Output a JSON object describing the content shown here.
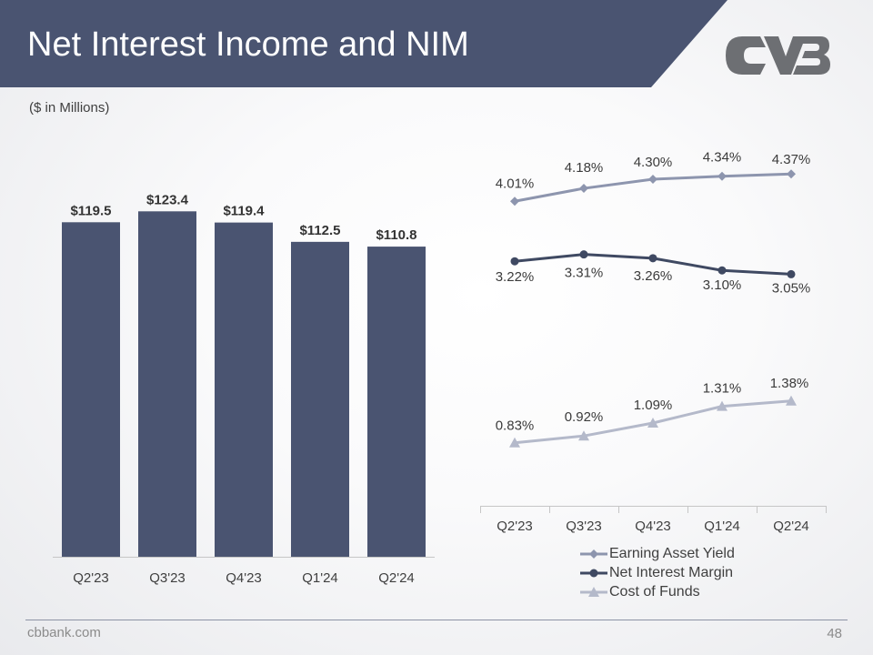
{
  "slide": {
    "title": "Net Interest Income and NIM",
    "units_note": "($ in Millions)",
    "footer_url": "cbbank.com",
    "page_number": "48",
    "logo_icon": "cvb-logo-icon",
    "colors": {
      "header": "#4a5471",
      "bar": "#4a5471",
      "earning_asset_yield": "#8d95ae",
      "net_interest_margin": "#3f4962",
      "cost_of_funds": "#b4b9ca",
      "axis": "#c6c6c6"
    }
  },
  "chart_data": [
    {
      "type": "bar",
      "categories": [
        "Q2'23",
        "Q3'23",
        "Q4'23",
        "Q1'24",
        "Q2'24"
      ],
      "values": [
        119.5,
        123.4,
        119.4,
        112.5,
        110.8
      ],
      "data_labels": [
        "$119.5",
        "$123.4",
        "$119.4",
        "$112.5",
        "$110.8"
      ],
      "ylim": [
        0,
        130
      ]
    },
    {
      "type": "line",
      "categories": [
        "Q2'23",
        "Q3'23",
        "Q4'23",
        "Q1'24",
        "Q2'24"
      ],
      "series": [
        {
          "name": "Earning Asset Yield",
          "values": [
            4.01,
            4.18,
            4.3,
            4.34,
            4.37
          ],
          "data_labels": [
            "4.01%",
            "4.18%",
            "4.30%",
            "4.34%",
            "4.37%"
          ],
          "marker": "diamond"
        },
        {
          "name": "Net Interest Margin",
          "values": [
            3.22,
            3.31,
            3.26,
            3.1,
            3.05
          ],
          "data_labels": [
            "3.22%",
            "3.31%",
            "3.26%",
            "3.10%",
            "3.05%"
          ],
          "marker": "circle"
        },
        {
          "name": "Cost of Funds",
          "values": [
            0.83,
            0.92,
            1.09,
            1.31,
            1.38
          ],
          "data_labels": [
            "0.83%",
            "0.92%",
            "1.09%",
            "1.31%",
            "1.38%"
          ],
          "marker": "triangle"
        }
      ],
      "ylim": [
        0,
        4.6
      ],
      "legend": "bottom"
    }
  ]
}
